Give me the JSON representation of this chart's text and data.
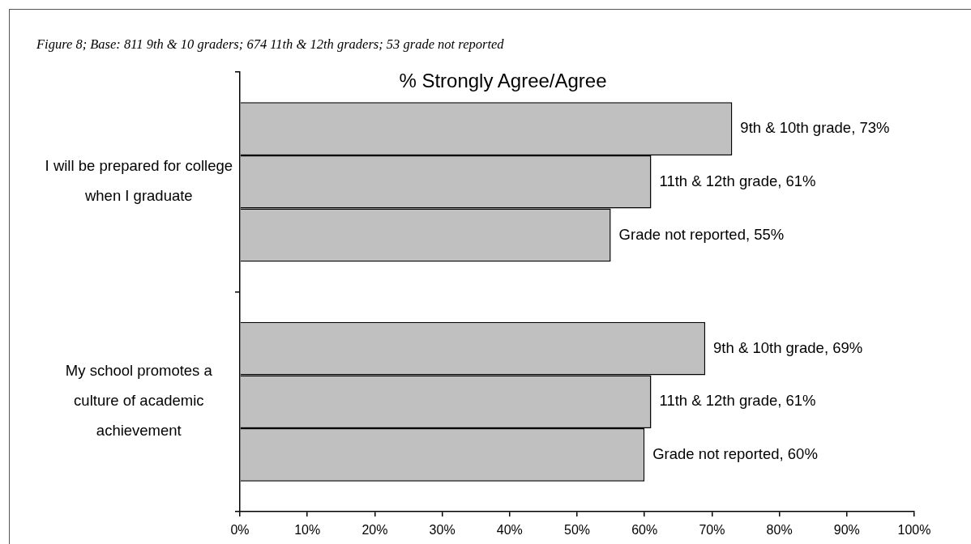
{
  "chart_data": {
    "type": "bar",
    "orientation": "horizontal",
    "title": "% Strongly Agree/Agree",
    "annotations": [
      "Figure 8; Base: 811 9th & 10 graders; 674 11th & 12th graders; 53 grade not reported"
    ],
    "categories": [
      "I will be prepared for college when I graduate",
      "My school promotes a culture of academic achievement"
    ],
    "series": [
      {
        "color": "#c0c0c0",
        "values": [
          73,
          69
        ],
        "value_labels": [
          "9th & 10th grade, 73%",
          "9th & 10th grade, 69%"
        ]
      },
      {
        "color": "#c0c0c0",
        "values": [
          61,
          61
        ],
        "value_labels": [
          "11th & 12th grade, 61%",
          "11th & 12th grade, 61%"
        ]
      },
      {
        "color": "#c0c0c0",
        "values": [
          55,
          60
        ],
        "value_labels": [
          "Grade not reported, 55%",
          "Grade not reported, 60%"
        ]
      }
    ],
    "xlim": [
      0,
      100
    ],
    "xticks": [
      {
        "value": 0,
        "label": "0%"
      },
      {
        "value": 10,
        "label": "10%"
      },
      {
        "value": 20,
        "label": "20%"
      },
      {
        "value": 30,
        "label": "30%"
      },
      {
        "value": 40,
        "label": "40%"
      },
      {
        "value": 50,
        "label": "50%"
      },
      {
        "value": 60,
        "label": "60%"
      },
      {
        "value": 70,
        "label": "70%"
      },
      {
        "value": 80,
        "label": "80%"
      },
      {
        "value": 90,
        "label": "90%"
      },
      {
        "value": 100,
        "label": "100%"
      }
    ],
    "grid": false
  }
}
